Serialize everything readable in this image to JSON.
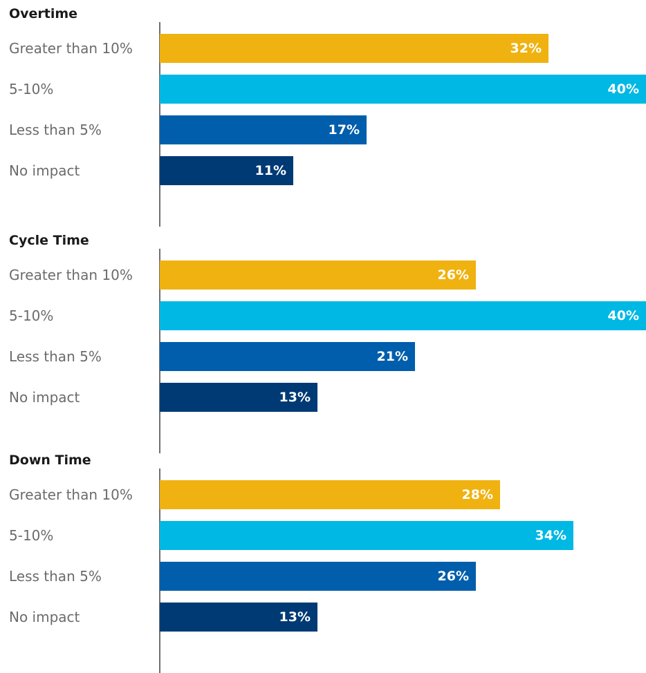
{
  "colors": {
    "Greater than 10%": "#f0b210",
    "5-10%": "#00b8e4",
    "Less than 5%": "#005eac",
    "No impact": "#003a75"
  },
  "chart_data": [
    {
      "type": "bar",
      "orientation": "horizontal",
      "title": "Overtime",
      "categories": [
        "Greater than 10%",
        "5-10%",
        "Less than 5%",
        "No impact"
      ],
      "values": [
        32,
        40,
        17,
        11
      ],
      "value_labels": [
        "32%",
        "40%",
        "17%",
        "11%"
      ],
      "unit": "%",
      "xlim": [
        0,
        40
      ],
      "grid": false,
      "legend": "none"
    },
    {
      "type": "bar",
      "orientation": "horizontal",
      "title": "Cycle Time",
      "categories": [
        "Greater than 10%",
        "5-10%",
        "Less than 5%",
        "No impact"
      ],
      "values": [
        26,
        40,
        21,
        13
      ],
      "value_labels": [
        "26%",
        "40%",
        "21%",
        "13%"
      ],
      "unit": "%",
      "xlim": [
        0,
        40
      ],
      "grid": false,
      "legend": "none"
    },
    {
      "type": "bar",
      "orientation": "horizontal",
      "title": "Down Time",
      "categories": [
        "Greater than 10%",
        "5-10%",
        "Less than 5%",
        "No impact"
      ],
      "values": [
        28,
        34,
        26,
        13
      ],
      "value_labels": [
        "28%",
        "34%",
        "26%",
        "13%"
      ],
      "unit": "%",
      "xlim": [
        0,
        40
      ],
      "grid": false,
      "legend": "none"
    }
  ]
}
